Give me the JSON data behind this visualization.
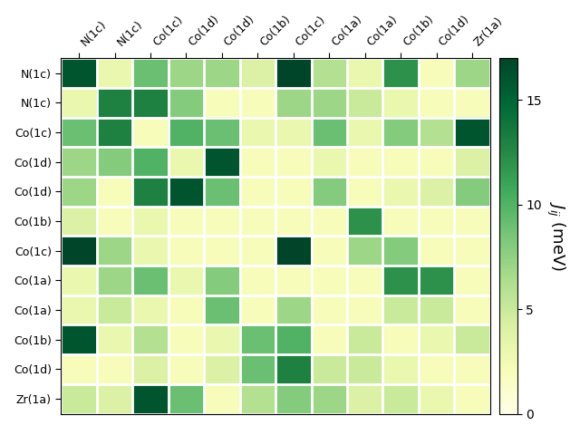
{
  "labels": [
    "N(1c)",
    "N(1c)",
    "Co(1c)",
    "Co(1d)",
    "Co(1d)",
    "Co(1b)",
    "Co(1c)",
    "Co(1a)",
    "Co(1a)",
    "Co(1b)",
    "Co(1d)",
    "Zr(1a)"
  ],
  "col_labels": [
    "N(1c)",
    "N(1c)",
    "Co(1c)",
    "Co(1d)",
    "Co(1d)",
    "Co(1b)",
    "Co(1c)",
    "Co(1a)",
    "Co(1a)",
    "Co(1b)",
    "Co(1d)",
    "Zr(1a)"
  ],
  "data": [
    [
      16.0,
      3.0,
      9.0,
      7.0,
      7.0,
      4.0,
      17.0,
      6.0,
      3.0,
      12.0,
      2.0,
      7.0
    ],
    [
      3.0,
      13.0,
      13.0,
      8.0,
      2.0,
      2.0,
      7.0,
      7.0,
      5.0,
      3.0,
      2.0,
      2.0
    ],
    [
      9.0,
      13.0,
      2.0,
      10.0,
      9.0,
      3.0,
      3.0,
      9.0,
      3.0,
      8.0,
      6.0,
      16.0
    ],
    [
      7.0,
      8.0,
      10.0,
      3.0,
      16.0,
      2.0,
      2.0,
      3.0,
      2.0,
      2.0,
      2.0,
      4.0
    ],
    [
      7.0,
      2.0,
      13.0,
      16.0,
      9.0,
      2.0,
      2.0,
      8.0,
      2.0,
      3.0,
      4.0,
      8.0
    ],
    [
      4.0,
      2.0,
      3.0,
      2.0,
      2.0,
      2.0,
      2.0,
      2.0,
      12.0,
      2.0,
      2.0,
      2.0
    ],
    [
      17.0,
      7.0,
      3.0,
      2.0,
      2.0,
      2.0,
      17.0,
      2.0,
      7.0,
      8.0,
      2.0,
      2.0
    ],
    [
      3.0,
      7.0,
      9.0,
      3.0,
      8.0,
      2.0,
      2.0,
      2.0,
      2.0,
      12.0,
      12.0,
      2.0
    ],
    [
      3.0,
      5.0,
      3.0,
      2.0,
      9.0,
      2.0,
      7.0,
      2.0,
      2.0,
      5.0,
      5.0,
      2.0
    ],
    [
      16.0,
      3.0,
      6.0,
      2.0,
      3.0,
      9.0,
      10.0,
      2.0,
      5.0,
      2.0,
      3.0,
      5.0
    ],
    [
      2.0,
      2.0,
      4.0,
      2.0,
      4.0,
      9.0,
      13.0,
      5.0,
      5.0,
      3.0,
      2.0,
      2.0
    ],
    [
      5.0,
      4.0,
      16.0,
      9.0,
      2.0,
      6.0,
      8.0,
      7.0,
      4.0,
      5.0,
      3.0,
      2.0
    ]
  ],
  "vmin": 0,
  "vmax": 17,
  "cmap": "YlGn",
  "colorbar_label": "$J_{ij}$ (meV)",
  "colorbar_ticks": [
    0,
    5,
    10,
    15
  ],
  "figsize": [
    6.4,
    4.8
  ],
  "dpi": 100
}
